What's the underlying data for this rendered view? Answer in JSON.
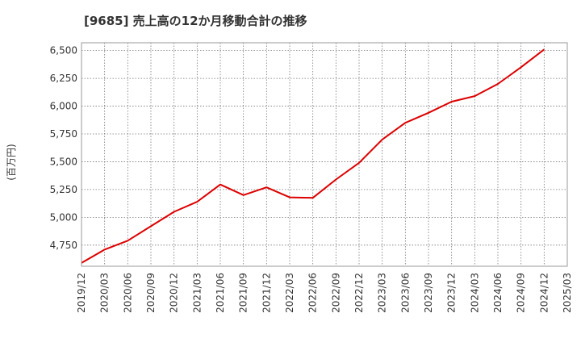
{
  "chart_data": {
    "type": "line",
    "title": "[9685]  売上高の12か月移動合計の推移",
    "xlabel": "",
    "ylabel": "(百万円)",
    "x": [
      "2019/12",
      "2020/03",
      "2020/06",
      "2020/09",
      "2020/12",
      "2021/03",
      "2021/06",
      "2021/09",
      "2021/12",
      "2022/03",
      "2022/06",
      "2022/09",
      "2022/12",
      "2023/03",
      "2023/06",
      "2023/09",
      "2023/12",
      "2024/03",
      "2024/06",
      "2024/09",
      "2024/12",
      "2025/03"
    ],
    "yticks": [
      4750,
      5000,
      5250,
      5500,
      5750,
      6000,
      6250,
      6500
    ],
    "ytick_labels": [
      "4,750",
      "5,000",
      "5,250",
      "5,500",
      "5,750",
      "6,000",
      "6,250",
      "6,500"
    ],
    "ylim": [
      4560,
      6570
    ],
    "grid": true,
    "series": [
      {
        "name": "売上高",
        "color": "#dd0000",
        "values": [
          4590,
          4710,
          4790,
          4920,
          5050,
          5140,
          5295,
          5200,
          5270,
          5180,
          5175,
          5340,
          5490,
          5700,
          5850,
          5940,
          6040,
          6090,
          6200,
          6350,
          6510,
          null
        ]
      }
    ]
  }
}
